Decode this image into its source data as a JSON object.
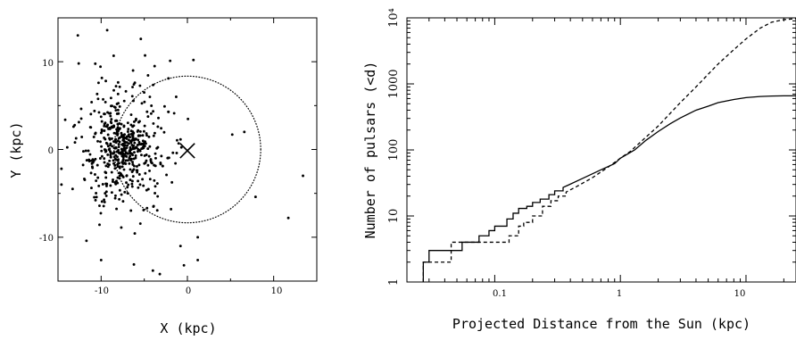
{
  "chart_data": [
    {
      "type": "scatter",
      "xlabel": "X (kpc)",
      "ylabel": "Y (kpc)",
      "xlim": [
        -15,
        15
      ],
      "ylim": [
        -15,
        15
      ],
      "x_ticks": [
        "-10",
        "0",
        "10"
      ],
      "y_ticks": [
        "10",
        "0",
        "-10"
      ],
      "grid": false,
      "marker_label": "×",
      "sun_position": [
        0,
        0
      ],
      "circle": {
        "center": [
          0,
          0
        ],
        "radius": 8.5
      },
      "points": [
        [
          -12.7,
          13.0
        ],
        [
          -9.3,
          13.6
        ],
        [
          -5.4,
          12.6
        ],
        [
          -12.6,
          9.8
        ],
        [
          -10.3,
          7.6
        ],
        [
          -6.3,
          9.0
        ],
        [
          -3.8,
          9.5
        ],
        [
          -2.2,
          8.1
        ],
        [
          -2.0,
          10.1
        ],
        [
          -14.6,
          -2.2
        ],
        [
          -14.6,
          -4.0
        ],
        [
          -11.7,
          -10.4
        ],
        [
          -10.0,
          -12.6
        ],
        [
          -6.2,
          -13.1
        ],
        [
          -4.0,
          -13.8
        ],
        [
          -3.2,
          -14.2
        ],
        [
          -0.4,
          -13.2
        ],
        [
          1.2,
          -12.6
        ],
        [
          0.7,
          10.2
        ],
        [
          7.9,
          -5.4
        ],
        [
          5.2,
          1.7
        ],
        [
          6.6,
          2.0
        ],
        [
          11.7,
          -7.8
        ],
        [
          13.4,
          -3.0
        ],
        [
          -0.8,
          -11.0
        ],
        [
          1.2,
          -10.0
        ],
        [
          -13.2,
          2.6
        ],
        [
          -1.3,
          6.0
        ],
        [
          -9.5,
          5.4
        ],
        [
          -1.9,
          -6.8
        ]
      ],
      "cluster": {
        "center": [
          -7.5,
          0.0
        ],
        "sigma": [
          2.6,
          3.6
        ],
        "count": 520
      }
    },
    {
      "type": "line",
      "xlabel": "Projected Distance from the Sun (kpc)",
      "ylabel": "Number of pulsars (<d)",
      "xscale": "log",
      "yscale": "log",
      "xlim": [
        0.02,
        25
      ],
      "ylim": [
        1,
        10000
      ],
      "x_ticks": [
        "0.1",
        "1",
        "10"
      ],
      "y_ticks": [
        "10⁴",
        "1000",
        "100",
        "10",
        "1"
      ],
      "series": [
        {
          "style": "solid",
          "steps": [
            [
              0.027,
              1
            ],
            [
              0.027,
              2
            ],
            [
              0.03,
              2
            ],
            [
              0.03,
              3
            ],
            [
              0.055,
              3
            ],
            [
              0.055,
              4
            ],
            [
              0.075,
              4
            ],
            [
              0.075,
              5
            ],
            [
              0.09,
              5
            ],
            [
              0.09,
              6
            ],
            [
              0.1,
              6
            ],
            [
              0.1,
              7
            ],
            [
              0.125,
              7
            ],
            [
              0.125,
              9
            ],
            [
              0.14,
              9
            ],
            [
              0.14,
              11
            ],
            [
              0.155,
              11
            ],
            [
              0.155,
              13
            ],
            [
              0.18,
              13
            ],
            [
              0.18,
              14
            ],
            [
              0.2,
              14
            ],
            [
              0.2,
              16
            ],
            [
              0.23,
              16
            ],
            [
              0.23,
              18
            ],
            [
              0.27,
              18
            ],
            [
              0.27,
              21
            ],
            [
              0.3,
              21
            ],
            [
              0.3,
              24
            ],
            [
              0.35,
              24
            ],
            [
              0.35,
              27
            ]
          ],
          "curve": [
            [
              0.35,
              27
            ],
            [
              0.5,
              37
            ],
            [
              0.7,
              50
            ],
            [
              0.9,
              62
            ],
            [
              1.0,
              75
            ],
            [
              1.3,
              100
            ],
            [
              1.6,
              140
            ],
            [
              2.0,
              190
            ],
            [
              2.5,
              250
            ],
            [
              3.0,
              305
            ],
            [
              4.0,
              400
            ],
            [
              5.0,
              460
            ],
            [
              6.0,
              520
            ],
            [
              8.0,
              580
            ],
            [
              10.0,
              620
            ],
            [
              13.0,
              645
            ],
            [
              16.0,
              655
            ],
            [
              20.0,
              660
            ],
            [
              25.0,
              660
            ]
          ]
        },
        {
          "style": "dashed",
          "steps": [
            [
              0.027,
              1
            ],
            [
              0.027,
              2
            ],
            [
              0.045,
              2
            ],
            [
              0.045,
              4
            ],
            [
              0.13,
              4
            ],
            [
              0.13,
              5
            ],
            [
              0.155,
              5
            ],
            [
              0.155,
              7
            ],
            [
              0.17,
              7
            ],
            [
              0.17,
              8
            ],
            [
              0.2,
              8
            ],
            [
              0.2,
              10
            ],
            [
              0.24,
              10
            ],
            [
              0.24,
              14
            ],
            [
              0.28,
              14
            ],
            [
              0.28,
              17
            ],
            [
              0.32,
              17
            ],
            [
              0.32,
              20
            ],
            [
              0.37,
              20
            ],
            [
              0.37,
              23
            ]
          ],
          "curve": [
            [
              0.37,
              23
            ],
            [
              0.45,
              28
            ],
            [
              0.6,
              38
            ],
            [
              0.8,
              55
            ],
            [
              1.0,
              75
            ],
            [
              1.2,
              95
            ],
            [
              1.5,
              140
            ],
            [
              2.0,
              230
            ],
            [
              2.5,
              360
            ],
            [
              3.0,
              520
            ],
            [
              4.0,
              900
            ],
            [
              5.0,
              1400
            ],
            [
              6.0,
              2000
            ],
            [
              8.0,
              3300
            ],
            [
              10.0,
              4800
            ],
            [
              13.0,
              7000
            ],
            [
              16.0,
              8600
            ],
            [
              20.0,
              9400
            ],
            [
              25.0,
              9700
            ]
          ]
        }
      ]
    }
  ]
}
